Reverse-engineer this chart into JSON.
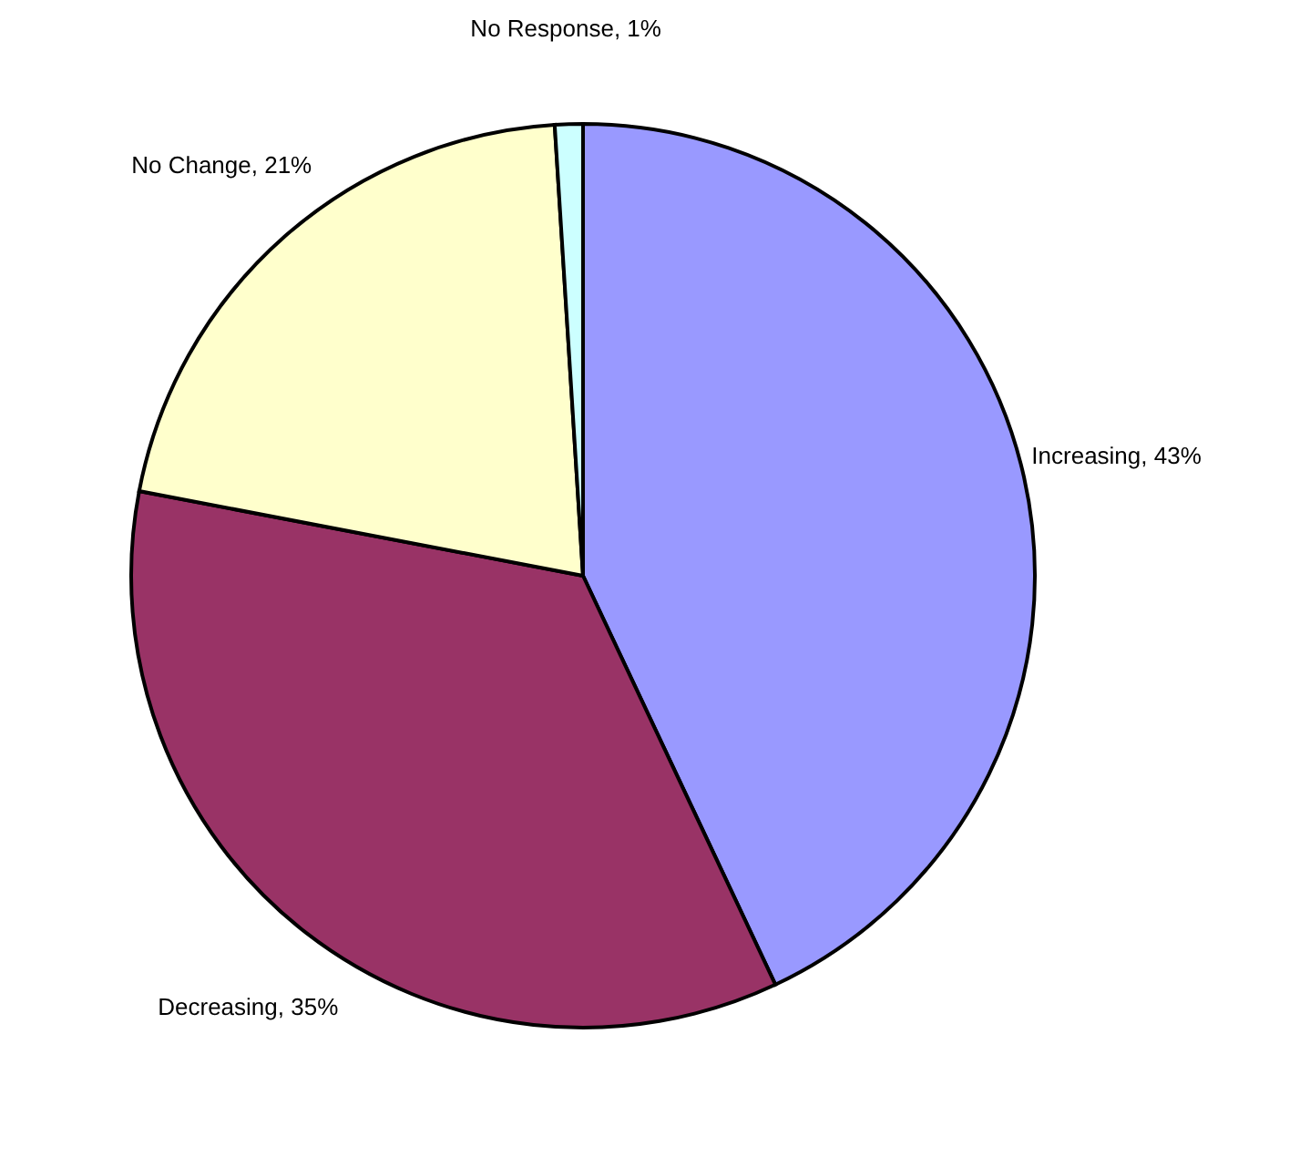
{
  "chart_data": {
    "type": "pie",
    "categories": [
      "Increasing",
      "Decreasing",
      "No Change",
      "No Response"
    ],
    "values": [
      43,
      35,
      21,
      1
    ],
    "value_labels": [
      "43%",
      "35%",
      "21%",
      "1%"
    ],
    "colors": [
      "#9999ff",
      "#993366",
      "#ffffcc",
      "#ccffff"
    ],
    "legend": false
  }
}
